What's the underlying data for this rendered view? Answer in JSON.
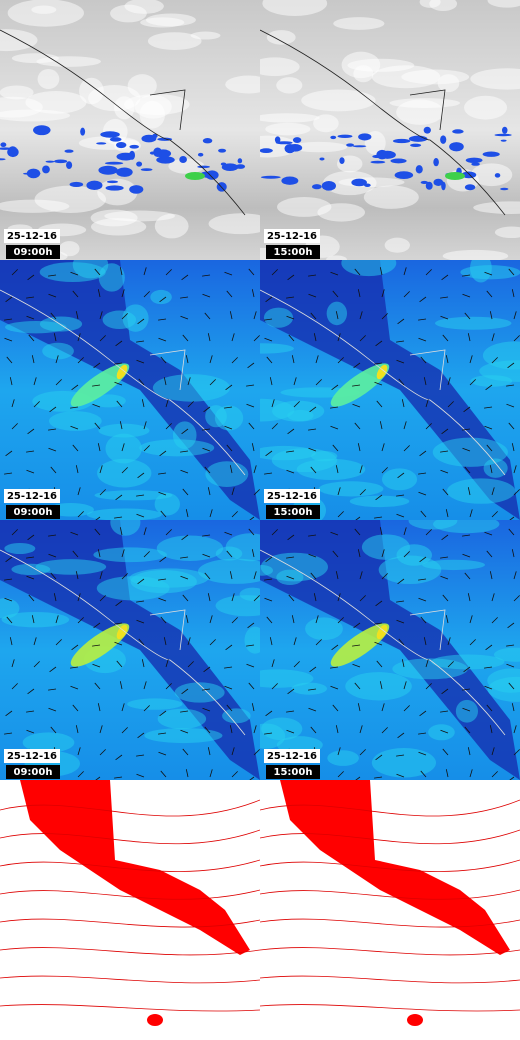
{
  "panels": [
    {
      "date": "25-12-16",
      "time": "09:00h"
    },
    {
      "date": "25-12-16",
      "time": "15:00h"
    },
    {
      "date": "25-12-16",
      "time": "09:00h"
    },
    {
      "date": "25-12-16",
      "time": "15:00h"
    },
    {
      "date": "25-12-16",
      "time": "09:00h"
    },
    {
      "date": "25-12-16",
      "time": "15:00h"
    }
  ]
}
